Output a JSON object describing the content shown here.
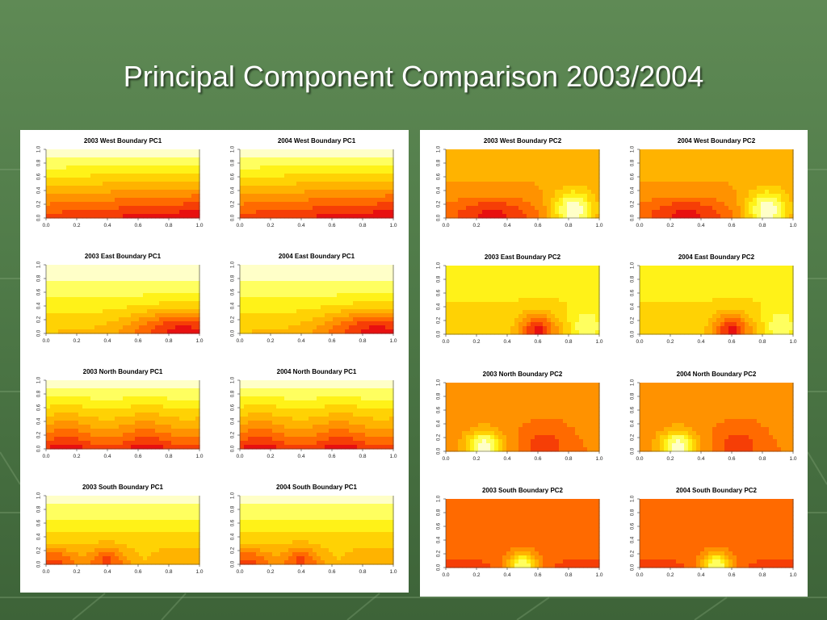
{
  "slide": {
    "title": "Principal Component Comparison 2003/2004"
  },
  "colors": {
    "background": "#5a8450",
    "title_text": "#ffffff",
    "panel": "#ffffff",
    "heat_scale": [
      "#e81010",
      "#ff5a00",
      "#ff9a00",
      "#ffcc00",
      "#ffff20",
      "#ffffc8"
    ]
  },
  "axis_ticks": {
    "x": [
      "0.0",
      "0.2",
      "0.4",
      "0.6",
      "0.8",
      "1.0"
    ],
    "y": [
      "0.0",
      "0.2",
      "0.4",
      "0.6",
      "0.8",
      "1.0"
    ]
  },
  "chart_data": [
    {
      "type": "heatmap",
      "title": "2003 West Boundary PC1",
      "xlim": [
        0,
        1
      ],
      "ylim": [
        0,
        1
      ],
      "grid": false,
      "pattern": "horizontal-bands-red-bottom-right"
    },
    {
      "type": "heatmap",
      "title": "2004 West Boundary PC1",
      "xlim": [
        0,
        1
      ],
      "ylim": [
        0,
        1
      ],
      "grid": false,
      "pattern": "horizontal-bands-red-bottom-right"
    },
    {
      "type": "heatmap",
      "title": "2003 East Boundary PC1",
      "xlim": [
        0,
        1
      ],
      "ylim": [
        0,
        1
      ],
      "grid": false,
      "pattern": "red-core-bottom-right"
    },
    {
      "type": "heatmap",
      "title": "2004 East Boundary PC1",
      "xlim": [
        0,
        1
      ],
      "ylim": [
        0,
        1
      ],
      "grid": false,
      "pattern": "red-core-bottom-right"
    },
    {
      "type": "heatmap",
      "title": "2003 North Boundary PC1",
      "xlim": [
        0,
        1
      ],
      "ylim": [
        0,
        1
      ],
      "grid": false,
      "pattern": "red-band-bottom"
    },
    {
      "type": "heatmap",
      "title": "2004 North Boundary PC1",
      "xlim": [
        0,
        1
      ],
      "ylim": [
        0,
        1
      ],
      "grid": false,
      "pattern": "red-band-bottom"
    },
    {
      "type": "heatmap",
      "title": "2003 South Boundary PC1",
      "xlim": [
        0,
        1
      ],
      "ylim": [
        0,
        1
      ],
      "grid": false,
      "pattern": "orange-with-red-spots-bottom"
    },
    {
      "type": "heatmap",
      "title": "2004 South Boundary PC1",
      "xlim": [
        0,
        1
      ],
      "ylim": [
        0,
        1
      ],
      "grid": false,
      "pattern": "orange-with-red-spots-bottom"
    },
    {
      "type": "heatmap",
      "title": "2003 West Boundary PC2",
      "xlim": [
        0,
        1
      ],
      "ylim": [
        0,
        1
      ],
      "grid": false,
      "pattern": "orange-with-hot-spot-bottom-right"
    },
    {
      "type": "heatmap",
      "title": "2004 West Boundary PC2",
      "xlim": [
        0,
        1
      ],
      "ylim": [
        0,
        1
      ],
      "grid": false,
      "pattern": "orange-with-hot-spot-bottom-right"
    },
    {
      "type": "heatmap",
      "title": "2003 East Boundary PC2",
      "xlim": [
        0,
        1
      ],
      "ylim": [
        0,
        1
      ],
      "grid": false,
      "pattern": "yellow-with-red-core-bottom"
    },
    {
      "type": "heatmap",
      "title": "2004 East Boundary PC2",
      "xlim": [
        0,
        1
      ],
      "ylim": [
        0,
        1
      ],
      "grid": false,
      "pattern": "yellow-with-red-core-bottom"
    },
    {
      "type": "heatmap",
      "title": "2003 North Boundary PC2",
      "xlim": [
        0,
        1
      ],
      "ylim": [
        0,
        1
      ],
      "grid": false,
      "pattern": "orange-red-with-hot-spot-bottom-left"
    },
    {
      "type": "heatmap",
      "title": "2004 North Boundary PC2",
      "xlim": [
        0,
        1
      ],
      "ylim": [
        0,
        1
      ],
      "grid": false,
      "pattern": "orange-red-with-hot-spot-bottom-left"
    },
    {
      "type": "heatmap",
      "title": "2003 South Boundary PC2",
      "xlim": [
        0,
        1
      ],
      "ylim": [
        0,
        1
      ],
      "grid": false,
      "pattern": "red-with-hot-spot-bottom-center"
    },
    {
      "type": "heatmap",
      "title": "2004 South Boundary PC2",
      "xlim": [
        0,
        1
      ],
      "ylim": [
        0,
        1
      ],
      "grid": false,
      "pattern": "red-with-hot-spot-bottom-center"
    }
  ]
}
